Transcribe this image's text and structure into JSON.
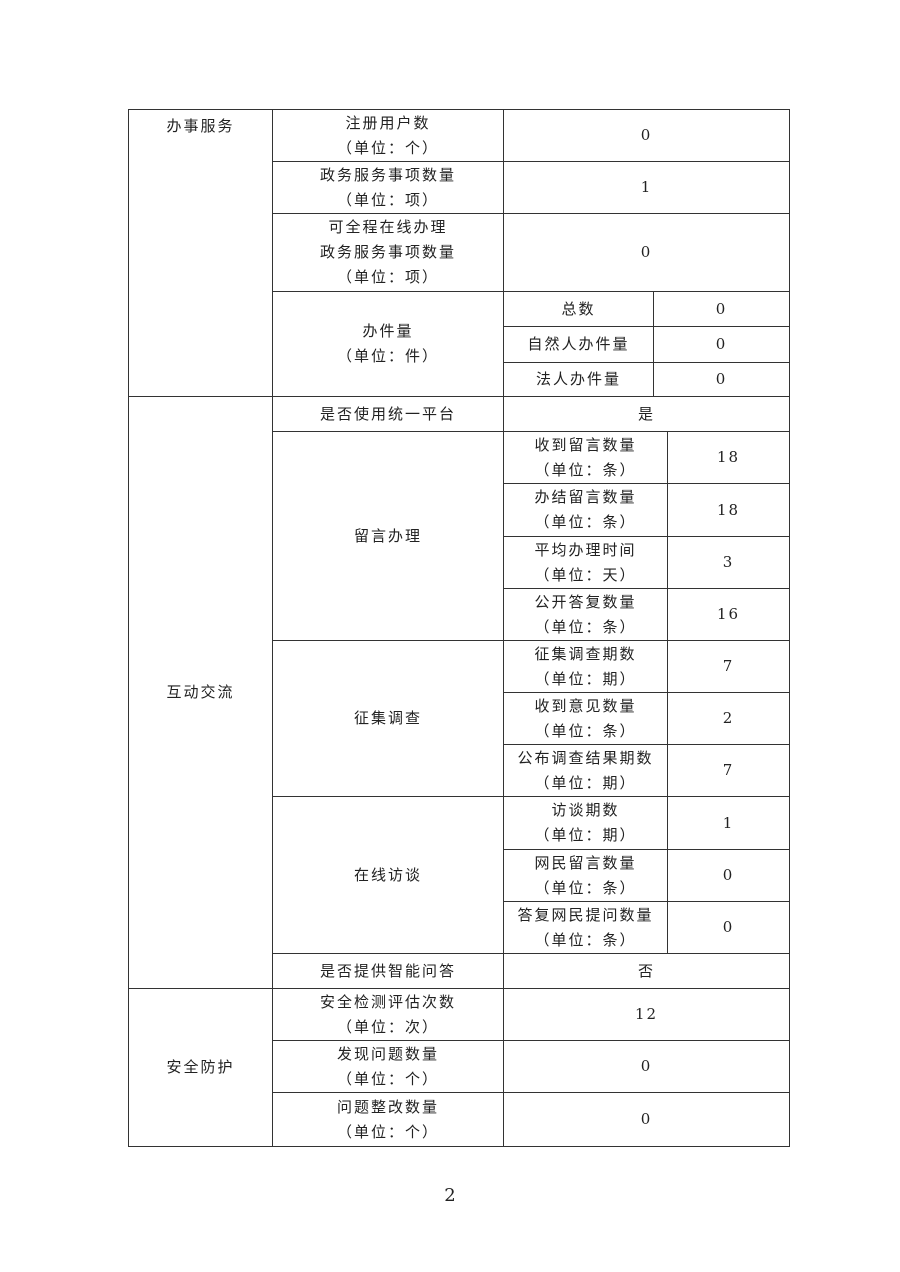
{
  "table": {
    "service": {
      "label": "办事服务",
      "registered_users": {
        "label": "注册用户数\n（单位：个）",
        "value": "0"
      },
      "service_items": {
        "label": "政务服务事项数量\n（单位：项）",
        "value": "1"
      },
      "online_items": {
        "label": "可全程在线办理\n政务服务事项数量\n（单位：项）",
        "value": "0"
      },
      "cases": {
        "label": "办件量\n（单位：件）",
        "total": {
          "label": "总数",
          "value": "0"
        },
        "natural": {
          "label": "自然人办件量",
          "value": "0"
        },
        "legal": {
          "label": "法人办件量",
          "value": "0"
        }
      }
    },
    "interaction": {
      "label": "互动交流",
      "unified_platform": {
        "label": "是否使用统一平台",
        "value": "是"
      },
      "messages": {
        "label": "留言办理",
        "received": {
          "label": "收到留言数量\n（单位：条）",
          "value": "18"
        },
        "closed": {
          "label": "办结留言数量\n（单位：条）",
          "value": "18"
        },
        "avg_time": {
          "label": "平均办理时间\n（单位：天）",
          "value": "3"
        },
        "public_replies": {
          "label": "公开答复数量\n（单位：条）",
          "value": "16"
        }
      },
      "survey": {
        "label": "征集调查",
        "periods": {
          "label": "征集调查期数\n（单位：期）",
          "value": "7"
        },
        "opinions": {
          "label": "收到意见数量\n（单位：条）",
          "value": "2"
        },
        "results": {
          "label": "公布调查结果期数\n（单位：期）",
          "value": "7"
        }
      },
      "interview": {
        "label": "在线访谈",
        "periods": {
          "label": "访谈期数\n（单位：期）",
          "value": "1"
        },
        "messages": {
          "label": "网民留言数量\n（单位：条）",
          "value": "0"
        },
        "answers": {
          "label": "答复网民提问数量\n（单位：条）",
          "value": "0"
        }
      },
      "smart_qa": {
        "label": "是否提供智能问答",
        "value": "否"
      }
    },
    "security": {
      "label": "安全防护",
      "checks": {
        "label": "安全检测评估次数\n（单位：次）",
        "value": "12"
      },
      "found": {
        "label": "发现问题数量\n（单位：个）",
        "value": "0"
      },
      "fixed": {
        "label": "问题整改数量\n（单位：个）",
        "value": "0"
      }
    }
  },
  "page_number": "2"
}
